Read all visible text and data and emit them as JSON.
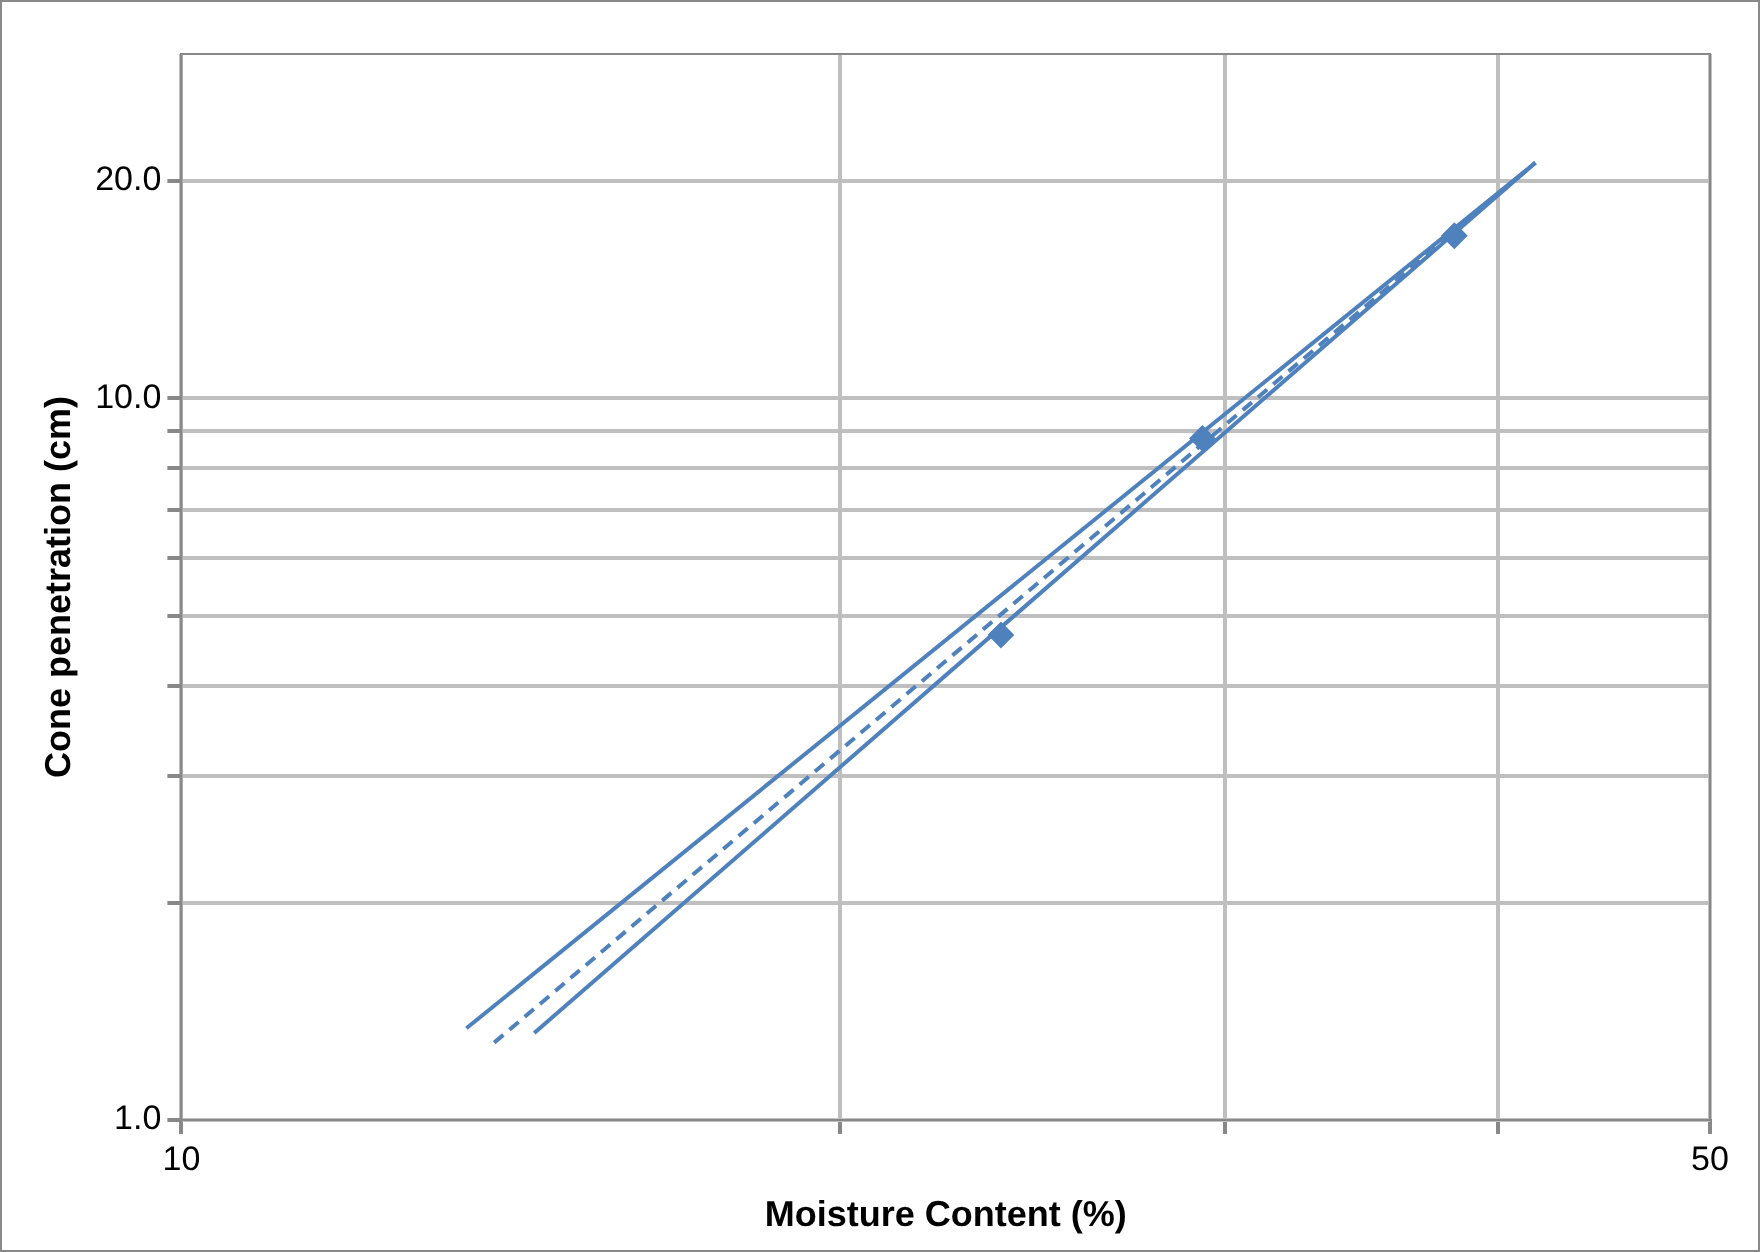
{
  "chart_data": {
    "type": "scatter",
    "xlabel": "Moisture Content (%)",
    "ylabel": "Cone penetration (cm)",
    "log": "xy",
    "grid": true,
    "legend": false,
    "marker": "diamond",
    "xlim": [
      10,
      50
    ],
    "xticks": [
      10,
      {
        "value": 20,
        "label": null
      },
      {
        "value": 30,
        "label": null
      },
      {
        "value": 40,
        "label": null
      },
      50
    ],
    "ylim": [
      1,
      30
    ],
    "yticks": [
      {
        "value": 1,
        "label": "1.0"
      },
      {
        "value": 2,
        "label": null
      },
      {
        "value": 3,
        "label": null
      },
      {
        "value": 4,
        "label": null
      },
      {
        "value": 5,
        "label": null
      },
      {
        "value": 6,
        "label": null
      },
      {
        "value": 7,
        "label": null
      },
      {
        "value": 8,
        "label": null
      },
      {
        "value": 9,
        "label": null
      },
      {
        "value": 10,
        "label": "10.0"
      },
      {
        "value": 20,
        "label": "20.0"
      }
    ],
    "series": [
      {
        "color": "#4f81bd",
        "x": [
          23.7,
          29.3,
          38.2
        ],
        "values": [
          4.7,
          8.8,
          16.8
        ]
      },
      {
        "type": "line",
        "color": "#4f81bd",
        "line_style": "solid",
        "marker": "none",
        "x": [
          13.5,
          41.6
        ],
        "values": [
          1.34,
          21.2
        ]
      },
      {
        "type": "line",
        "color": "#4f81bd",
        "line_style": "dashed",
        "marker": "none",
        "x": [
          13.9,
          41.6
        ],
        "values": [
          1.28,
          21.2
        ]
      },
      {
        "type": "line",
        "color": "#4f81bd",
        "line_style": "solid",
        "marker": "none",
        "x": [
          14.5,
          41.6
        ],
        "values": [
          1.32,
          21.2
        ]
      }
    ]
  }
}
